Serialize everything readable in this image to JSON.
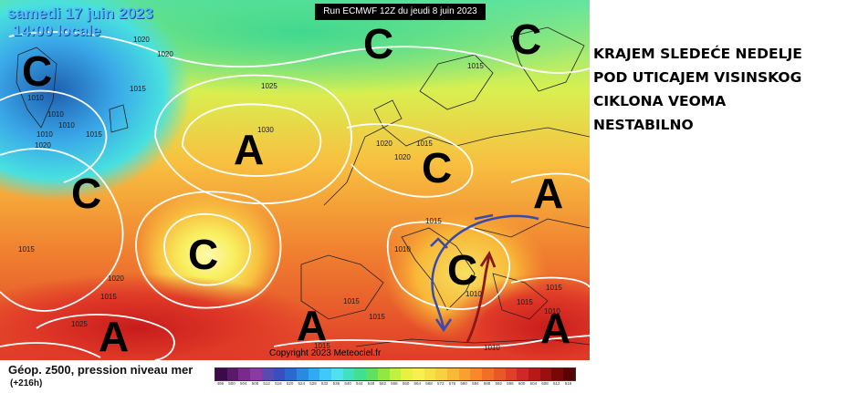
{
  "map": {
    "date": "samedi 17 juin 2023",
    "local_time": "14:00 locale",
    "run": "Run ECMWF 12Z du jeudi 8 juin 2023",
    "copyright": "Copyright 2023 Meteociel.fr",
    "pressure_centers": [
      {
        "label": "C"
      },
      {
        "label": "C"
      },
      {
        "label": "C"
      },
      {
        "label": "A"
      },
      {
        "label": "C"
      },
      {
        "label": "C"
      },
      {
        "label": "C"
      },
      {
        "label": "A"
      },
      {
        "label": "C"
      },
      {
        "label": "A"
      },
      {
        "label": "A"
      },
      {
        "label": "A"
      }
    ],
    "isobar_values": [
      "1020",
      "1020",
      "1015",
      "1010",
      "1010",
      "1015",
      "1020",
      "1015",
      "1025",
      "1030",
      "1015",
      "1020",
      "1015",
      "1020",
      "1015",
      "1010",
      "1015",
      "1015",
      "1025",
      "1020",
      "1015",
      "1010",
      "1015",
      "1015",
      "1010",
      "1015",
      "1010",
      "1010",
      "1010"
    ]
  },
  "headline": [
    "KRAJEM SLEDEĆE NEDELJE",
    "POD UTICAJEM VISINSKOG",
    "CIKLONA VEOMA",
    "NESTABILNO"
  ],
  "legend": {
    "title": "Géop. z500, pression niveau mer",
    "lead_time": "(+216h)",
    "ticks": [
      "496",
      "500",
      "504",
      "508",
      "512",
      "516",
      "520",
      "524",
      "528",
      "532",
      "536",
      "540",
      "544",
      "548",
      "552",
      "556",
      "560",
      "564",
      "568",
      "572",
      "576",
      "580",
      "584",
      "588",
      "592",
      "596",
      "600",
      "604",
      "608",
      "612",
      "616"
    ],
    "colors": [
      "#3a0a4a",
      "#5a1a6a",
      "#7a2a8a",
      "#8a3aa2",
      "#5a4ab0",
      "#3a4ec0",
      "#2a6ad0",
      "#2a8ae0",
      "#30aaf0",
      "#40c8f8",
      "#50e0f0",
      "#40e0c0",
      "#40e090",
      "#60e060",
      "#90e840",
      "#c0f040",
      "#e8f040",
      "#f8f050",
      "#f8e048",
      "#f8d040",
      "#f8b838",
      "#f8a030",
      "#f88828",
      "#f07028",
      "#e85828",
      "#e04028",
      "#d02828",
      "#b81818",
      "#981010",
      "#780808",
      "#580404"
    ]
  }
}
